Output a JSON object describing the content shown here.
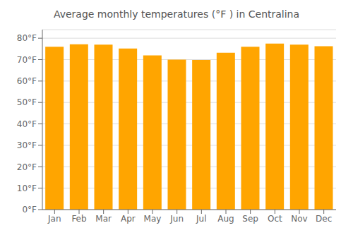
{
  "chart_data": {
    "type": "bar",
    "title": "Average monthly temperatures (°F ) in Centralina",
    "categories": [
      "Jan",
      "Feb",
      "Mar",
      "Apr",
      "May",
      "Jun",
      "Jul",
      "Aug",
      "Sep",
      "Oct",
      "Nov",
      "Dec"
    ],
    "values": [
      76.0,
      77.2,
      77.0,
      75.2,
      72.0,
      70.0,
      69.8,
      73.2,
      76.0,
      77.5,
      77.0,
      76.3
    ],
    "color": "#FFA500",
    "ylim": [
      0,
      84
    ],
    "yticks": [
      {
        "value": 0,
        "label": "0°F"
      },
      {
        "value": 10,
        "label": "10°F"
      },
      {
        "value": 20,
        "label": "20°F"
      },
      {
        "value": 30,
        "label": "30°F"
      },
      {
        "value": 40,
        "label": "40°F"
      },
      {
        "value": 50,
        "label": "50°F"
      },
      {
        "value": 60,
        "label": "60°F"
      },
      {
        "value": 70,
        "label": "70°F"
      },
      {
        "value": 80,
        "label": "80°F"
      }
    ],
    "grid": true
  }
}
